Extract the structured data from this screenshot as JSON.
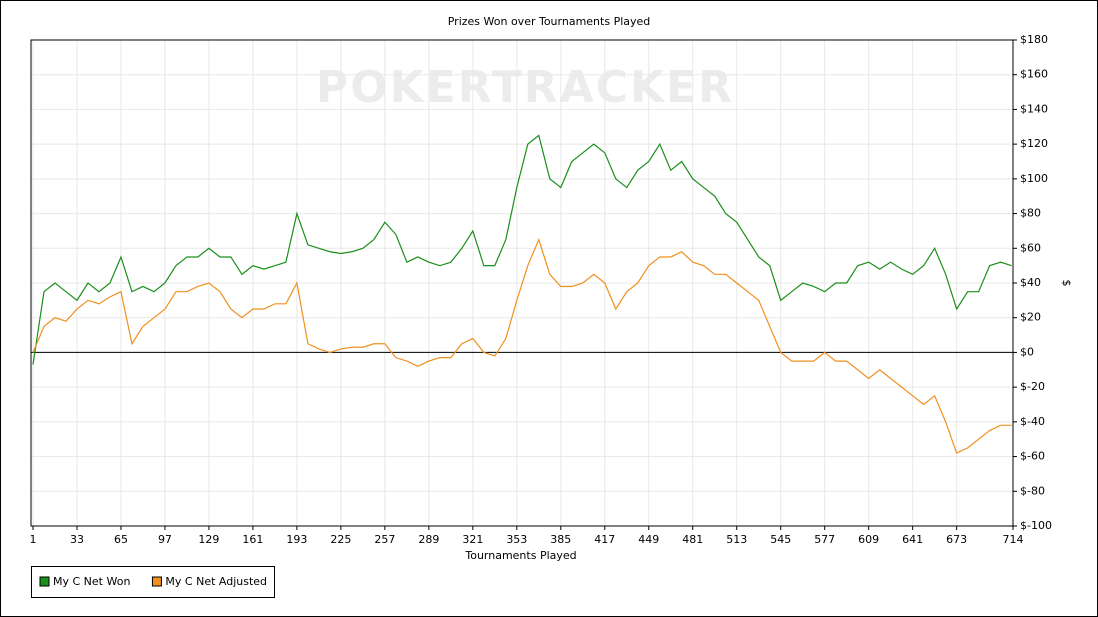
{
  "chart_data": {
    "type": "line",
    "title": "Prizes Won over Tournaments Played",
    "watermark": "POKERTRACKER",
    "x_label": "Tournaments Played",
    "y_label": "$",
    "xlim": [
      1,
      714
    ],
    "ylim": [
      -100,
      180
    ],
    "xticks": [
      1,
      33,
      65,
      97,
      129,
      161,
      193,
      225,
      257,
      289,
      321,
      353,
      385,
      417,
      449,
      481,
      513,
      545,
      577,
      609,
      641,
      673,
      714
    ],
    "yticks": [
      {
        "value": -100,
        "label": "$-100"
      },
      {
        "value": -80,
        "label": "$-80"
      },
      {
        "value": -60,
        "label": "$-60"
      },
      {
        "value": -40,
        "label": "$-40"
      },
      {
        "value": -20,
        "label": "$-20"
      },
      {
        "value": 0,
        "label": "$0"
      },
      {
        "value": 20,
        "label": "$20"
      },
      {
        "value": 40,
        "label": "$40"
      },
      {
        "value": 60,
        "label": "$60"
      },
      {
        "value": 80,
        "label": "$80"
      },
      {
        "value": 100,
        "label": "$100"
      },
      {
        "value": 120,
        "label": "$120"
      },
      {
        "value": 140,
        "label": "$140"
      },
      {
        "value": 160,
        "label": "$160"
      },
      {
        "value": 180,
        "label": "$180"
      }
    ],
    "grid": true,
    "legend": "bottom-left",
    "x": [
      1,
      9,
      17,
      25,
      33,
      41,
      49,
      57,
      65,
      73,
      81,
      89,
      97,
      105,
      113,
      121,
      129,
      137,
      145,
      153,
      161,
      169,
      177,
      185,
      193,
      201,
      209,
      217,
      225,
      233,
      241,
      249,
      257,
      265,
      273,
      281,
      289,
      297,
      305,
      313,
      321,
      329,
      337,
      345,
      353,
      361,
      369,
      377,
      385,
      393,
      401,
      409,
      417,
      425,
      433,
      441,
      449,
      457,
      465,
      473,
      481,
      489,
      497,
      505,
      513,
      521,
      529,
      537,
      545,
      553,
      561,
      569,
      577,
      585,
      593,
      601,
      609,
      617,
      625,
      633,
      641,
      649,
      657,
      665,
      673,
      681,
      689,
      697,
      705,
      713
    ],
    "series": [
      {
        "name": "My C Net Won",
        "color": "#1a8f1a",
        "values": [
          -7,
          35,
          40,
          35,
          30,
          40,
          35,
          40,
          55,
          35,
          38,
          35,
          40,
          50,
          55,
          55,
          60,
          55,
          55,
          45,
          50,
          48,
          50,
          52,
          80,
          62,
          60,
          58,
          57,
          58,
          60,
          65,
          75,
          68,
          52,
          55,
          52,
          50,
          52,
          60,
          70,
          50,
          50,
          65,
          95,
          120,
          125,
          100,
          95,
          110,
          115,
          120,
          115,
          100,
          95,
          105,
          110,
          120,
          105,
          110,
          100,
          95,
          90,
          80,
          75,
          65,
          55,
          50,
          30,
          35,
          40,
          38,
          35,
          40,
          40,
          50,
          52,
          48,
          52,
          48,
          45,
          50,
          60,
          45,
          25,
          35,
          35,
          50,
          52,
          50
        ]
      },
      {
        "name": "My C Net Adjusted",
        "color": "#f0901e",
        "values": [
          0,
          15,
          20,
          18,
          25,
          30,
          28,
          32,
          35,
          5,
          15,
          20,
          25,
          35,
          35,
          38,
          40,
          35,
          25,
          20,
          25,
          25,
          28,
          28,
          40,
          5,
          2,
          0,
          2,
          3,
          3,
          5,
          5,
          -3,
          -5,
          -8,
          -5,
          -3,
          -3,
          5,
          8,
          0,
          -2,
          8,
          30,
          50,
          65,
          45,
          38,
          38,
          40,
          45,
          40,
          25,
          35,
          40,
          50,
          55,
          55,
          58,
          52,
          50,
          45,
          45,
          40,
          35,
          30,
          15,
          0,
          -5,
          -5,
          -5,
          0,
          -5,
          -5,
          -10,
          -15,
          -10,
          -15,
          -20,
          -25,
          -30,
          -25,
          -40,
          -58,
          -55,
          -50,
          -45,
          -42,
          -42
        ]
      }
    ]
  }
}
